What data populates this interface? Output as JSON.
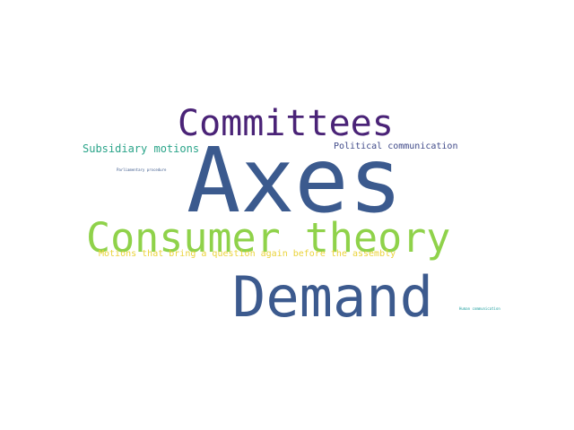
{
  "word_cloud": {
    "words": [
      {
        "id": "committees",
        "text": "Committees",
        "color": "#4a2377"
      },
      {
        "id": "subsidiary",
        "text": "Subsidiary motions",
        "color": "#2aa489"
      },
      {
        "id": "political",
        "text": "Political communication",
        "color": "#404a89"
      },
      {
        "id": "parliament",
        "text": "Parliamentary procedure",
        "color": "#3d5a8c"
      },
      {
        "id": "axes",
        "text": "Axes",
        "color": "#3b5a8e"
      },
      {
        "id": "consumer",
        "text": "Consumer theory",
        "color": "#8fd24a"
      },
      {
        "id": "motions",
        "text": "Motions that bring a question again before the assembly",
        "color": "#ead33a"
      },
      {
        "id": "demand",
        "text": "Demand",
        "color": "#3c5a8e"
      },
      {
        "id": "human",
        "text": "Human communication",
        "color": "#20a0a0"
      }
    ]
  }
}
